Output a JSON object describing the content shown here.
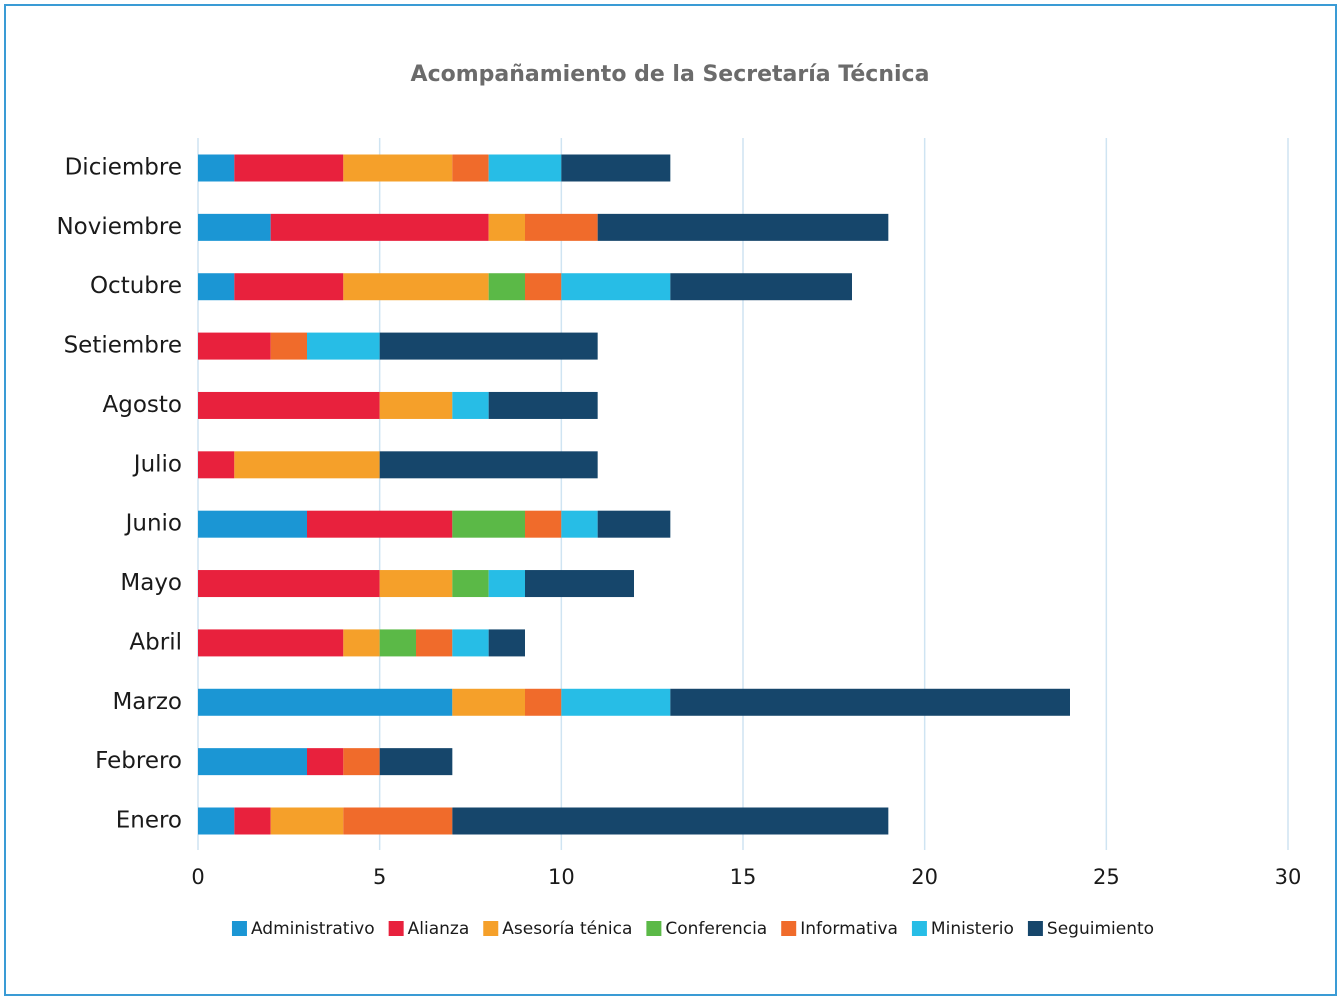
{
  "chart_data": {
    "type": "stacked-barh",
    "title": "Acompañamiento de la Secretaría Técnica",
    "categories": [
      "Enero",
      "Febrero",
      "Marzo",
      "Abril",
      "Mayo",
      "Junio",
      "Julio",
      "Agosto",
      "Setiembre",
      "Octubre",
      "Noviembre",
      "Diciembre"
    ],
    "series": [
      {
        "name": "Administrativo",
        "color": "#1b96d4",
        "values": [
          1,
          3,
          7,
          0,
          0,
          3,
          0,
          0,
          0,
          1,
          2,
          1
        ]
      },
      {
        "name": "Alianza",
        "color": "#e8213d",
        "values": [
          1,
          1,
          0,
          4,
          5,
          4,
          1,
          5,
          2,
          3,
          6,
          3
        ]
      },
      {
        "name": "Asesoría ténica",
        "color": "#f5a02a",
        "values": [
          2,
          0,
          2,
          1,
          2,
          0,
          4,
          2,
          0,
          4,
          1,
          3
        ]
      },
      {
        "name": "Conferencia",
        "color": "#5bb947",
        "values": [
          0,
          0,
          0,
          1,
          1,
          2,
          0,
          0,
          0,
          1,
          0,
          0
        ]
      },
      {
        "name": "Informativa",
        "color": "#f06b2b",
        "values": [
          3,
          1,
          1,
          1,
          0,
          1,
          0,
          0,
          1,
          1,
          2,
          1
        ]
      },
      {
        "name": "Ministerio",
        "color": "#27bde6",
        "values": [
          0,
          0,
          3,
          1,
          1,
          1,
          0,
          1,
          2,
          3,
          0,
          2
        ]
      },
      {
        "name": "Seguimiento",
        "color": "#16466b",
        "values": [
          12,
          2,
          11,
          1,
          3,
          2,
          6,
          3,
          6,
          5,
          8,
          3
        ]
      }
    ],
    "xlim": [
      0,
      30
    ],
    "xticks": [
      0,
      5,
      10,
      15,
      20,
      25,
      30
    ],
    "grid": true,
    "legend": "bottom"
  }
}
